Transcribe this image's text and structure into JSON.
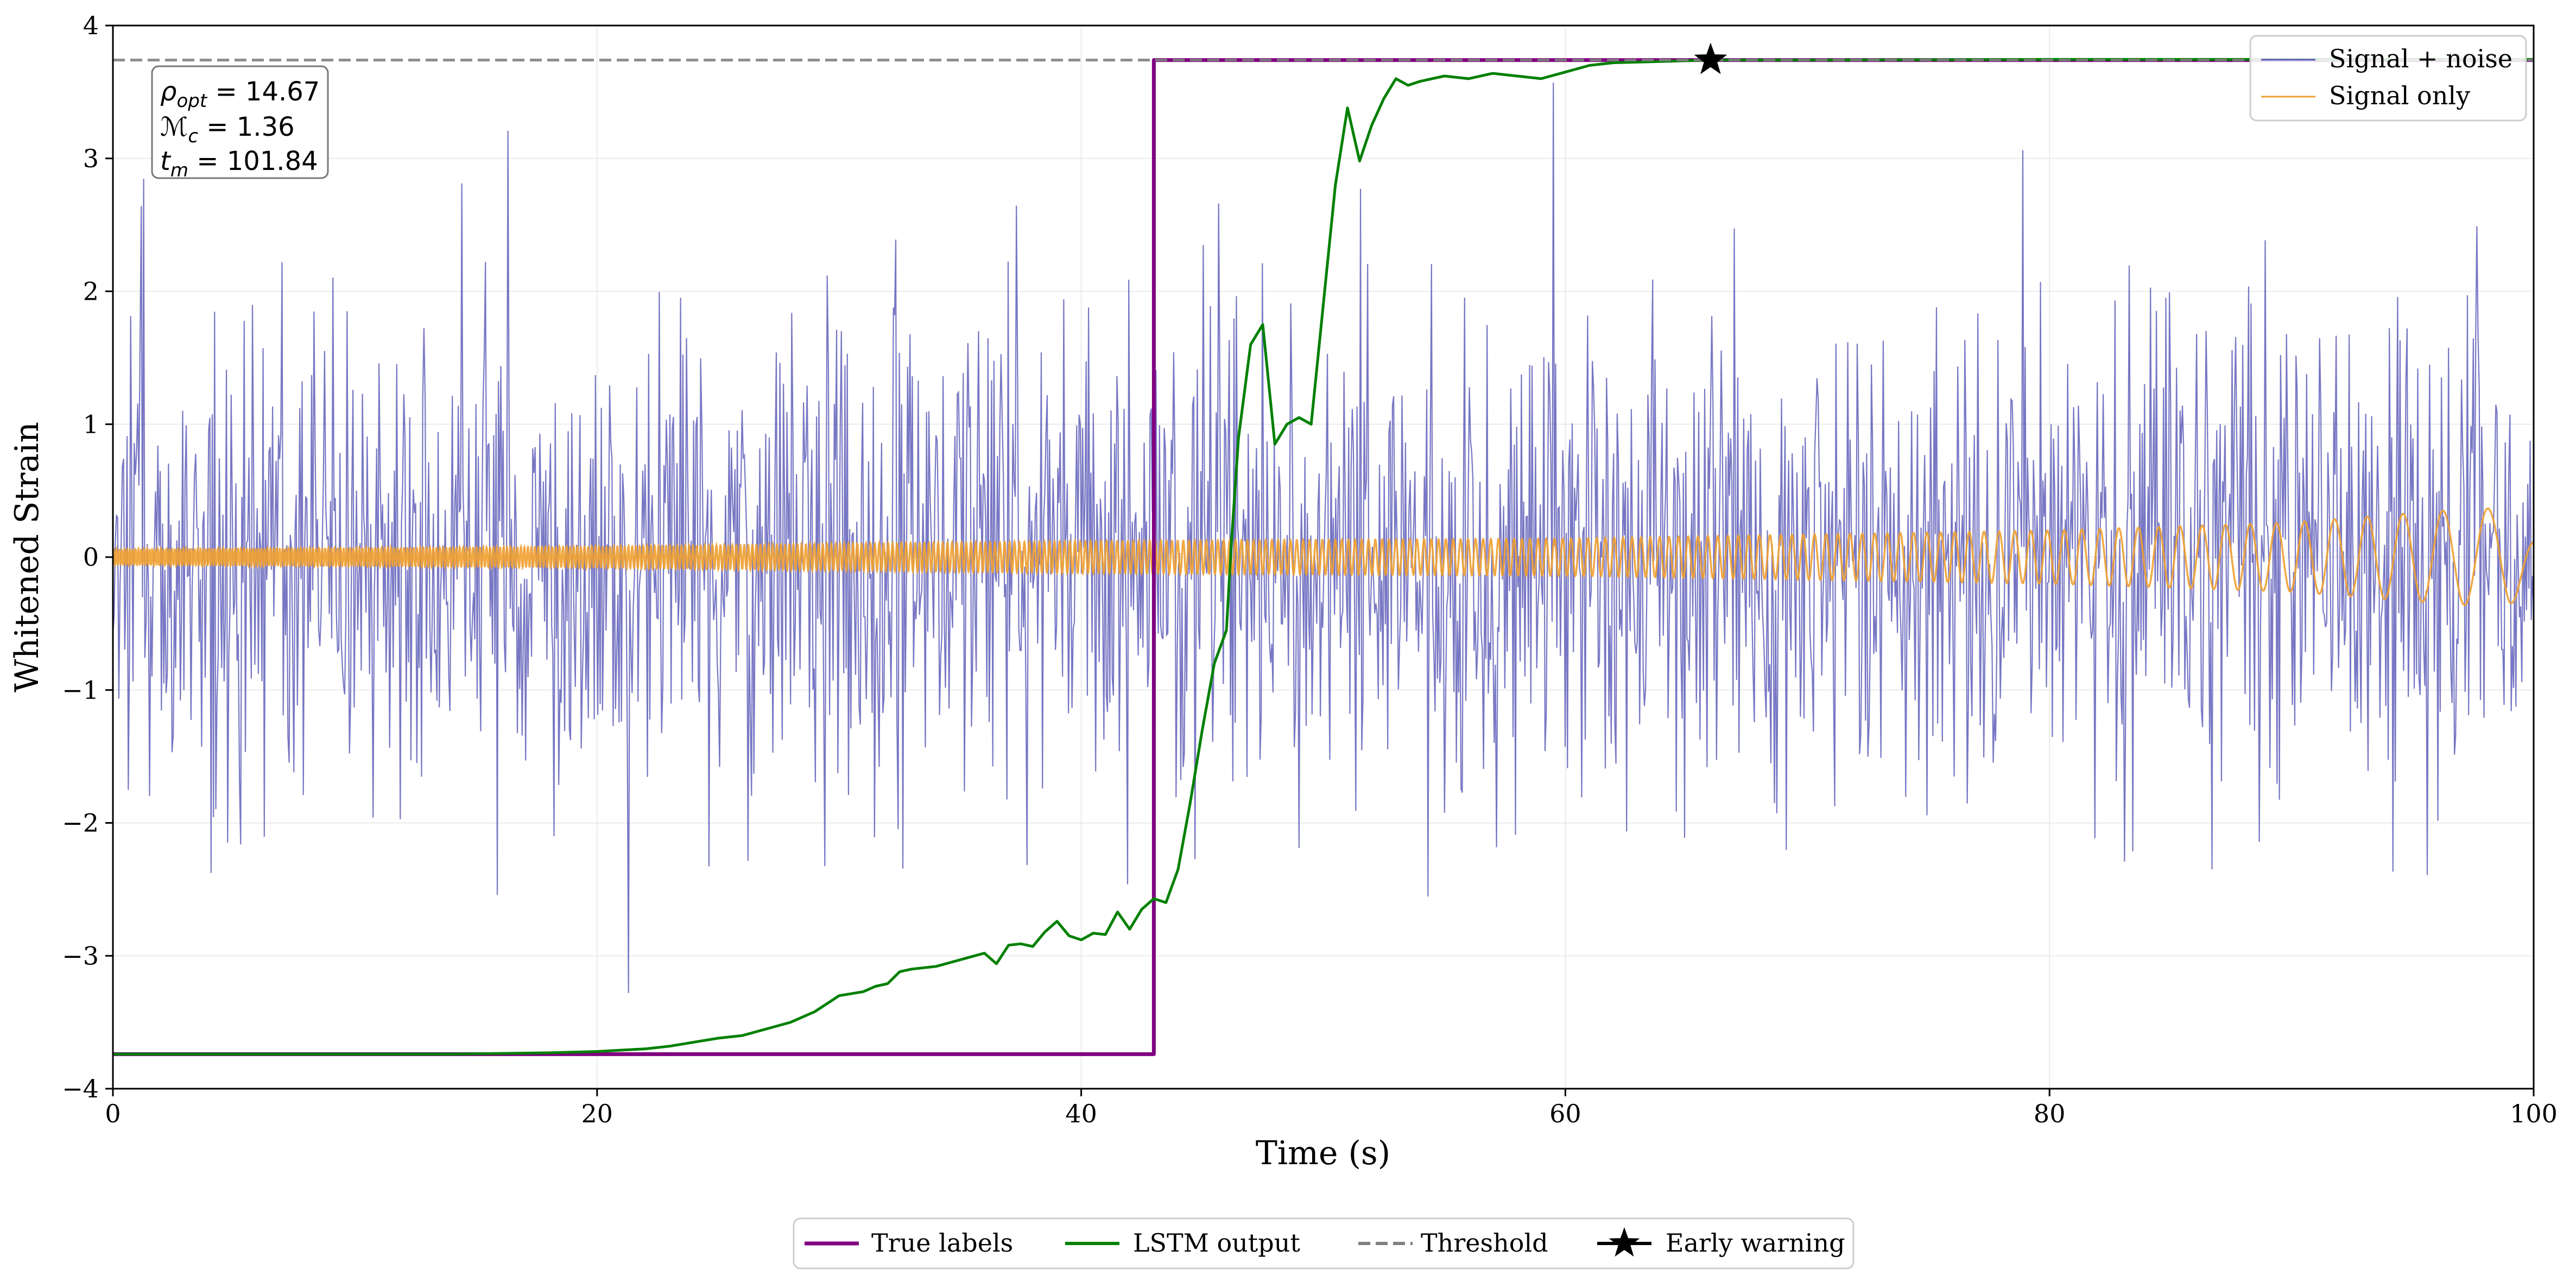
{
  "chart_data": {
    "type": "line",
    "title": "",
    "xlabel": "Time (s)",
    "ylabel": "Whitened Strain",
    "xlim": [
      0,
      100
    ],
    "ylim": [
      -4,
      4
    ],
    "x_ticks": [
      0,
      20,
      40,
      60,
      80,
      100
    ],
    "x_tick_labels": [
      "0",
      "20",
      "40",
      "60",
      "80",
      "100"
    ],
    "y_ticks": [
      -4,
      -3,
      -2,
      -1,
      0,
      1,
      2,
      3,
      4
    ],
    "y_tick_labels": [
      "−4",
      "−3",
      "−2",
      "−1",
      "0",
      "1",
      "2",
      "3",
      "4"
    ],
    "grid": true,
    "legend_upper": {
      "placement": "top-right",
      "entries": [
        {
          "label": "Signal + noise",
          "color": "#5555b5",
          "style": "line"
        },
        {
          "label": "Signal only",
          "color": "#f0a030",
          "style": "line"
        }
      ]
    },
    "legend_lower": {
      "placement": "bottom-center",
      "entries": [
        {
          "label": "True labels",
          "color": "#800080",
          "style": "line"
        },
        {
          "label": "LSTM output",
          "color": "#008000",
          "style": "line"
        },
        {
          "label": "Threshold",
          "color": "#808080",
          "style": "dashed"
        },
        {
          "label": "Early warning",
          "color": "#000000",
          "style": "star"
        }
      ]
    },
    "annotation": {
      "placement": "top-left",
      "lines": [
        {
          "sym": "ρ",
          "sub": "opt",
          "rest": " = 14.67"
        },
        {
          "sym": "ℳ",
          "sub": "c",
          "rest": " = 1.36"
        },
        {
          "sym": "t",
          "sub": "m",
          "rest": " = 101.84"
        }
      ]
    },
    "series": [
      {
        "name": "Signal + noise",
        "color": "#5555b5",
        "kind": "noise",
        "x_range": [
          0,
          100
        ],
        "n_samples": 2048,
        "std": 0.95,
        "min": -3.28,
        "max": 3.57,
        "note": "dense whitened noise sampled across the full time range"
      },
      {
        "name": "Signal only",
        "color": "#f0a030",
        "kind": "chirp",
        "x_range": [
          0,
          100
        ],
        "amplitude_envelope": [
          [
            0,
            0.06
          ],
          [
            20,
            0.08
          ],
          [
            40,
            0.12
          ],
          [
            60,
            0.14
          ],
          [
            80,
            0.2
          ],
          [
            90,
            0.26
          ],
          [
            97,
            0.36
          ],
          [
            99,
            0.37
          ],
          [
            100,
            0.15
          ]
        ],
        "note": "inspiral chirp whose frequency drops toward the end of the window"
      },
      {
        "name": "True labels",
        "color": "#800080",
        "points": [
          [
            0,
            -3.74
          ],
          [
            43,
            -3.74
          ],
          [
            43,
            3.74
          ],
          [
            100,
            3.74
          ]
        ]
      },
      {
        "name": "LSTM output",
        "color": "#008000",
        "points": [
          [
            0,
            -3.74
          ],
          [
            14,
            -3.74
          ],
          [
            16,
            -3.735
          ],
          [
            18,
            -3.73
          ],
          [
            20,
            -3.72
          ],
          [
            21,
            -3.71
          ],
          [
            22,
            -3.7
          ],
          [
            23,
            -3.68
          ],
          [
            24,
            -3.65
          ],
          [
            25,
            -3.62
          ],
          [
            26,
            -3.6
          ],
          [
            27,
            -3.55
          ],
          [
            28,
            -3.5
          ],
          [
            29,
            -3.42
          ],
          [
            30,
            -3.3
          ],
          [
            31,
            -3.27
          ],
          [
            31.5,
            -3.23
          ],
          [
            32,
            -3.21
          ],
          [
            32.5,
            -3.12
          ],
          [
            33,
            -3.1
          ],
          [
            34,
            -3.08
          ],
          [
            35,
            -3.03
          ],
          [
            36,
            -2.98
          ],
          [
            36.5,
            -3.06
          ],
          [
            37,
            -2.92
          ],
          [
            37.5,
            -2.91
          ],
          [
            38,
            -2.93
          ],
          [
            38.5,
            -2.82
          ],
          [
            39,
            -2.74
          ],
          [
            39.5,
            -2.85
          ],
          [
            40,
            -2.88
          ],
          [
            40.5,
            -2.83
          ],
          [
            41,
            -2.84
          ],
          [
            41.5,
            -2.67
          ],
          [
            42,
            -2.8
          ],
          [
            42.5,
            -2.65
          ],
          [
            43,
            -2.57
          ],
          [
            43.5,
            -2.6
          ],
          [
            44,
            -2.35
          ],
          [
            44.5,
            -1.85
          ],
          [
            45,
            -1.3
          ],
          [
            45.5,
            -0.8
          ],
          [
            46,
            -0.55
          ],
          [
            46.2,
            0.1
          ],
          [
            46.5,
            0.9
          ],
          [
            47,
            1.6
          ],
          [
            47.5,
            1.75
          ],
          [
            48,
            0.85
          ],
          [
            48.5,
            1.0
          ],
          [
            49,
            1.05
          ],
          [
            49.5,
            1.0
          ],
          [
            50,
            1.9
          ],
          [
            50.5,
            2.8
          ],
          [
            51,
            3.38
          ],
          [
            51.5,
            2.98
          ],
          [
            52,
            3.25
          ],
          [
            52.5,
            3.45
          ],
          [
            53,
            3.6
          ],
          [
            53.5,
            3.55
          ],
          [
            54,
            3.58
          ],
          [
            55,
            3.62
          ],
          [
            56,
            3.6
          ],
          [
            57,
            3.64
          ],
          [
            58,
            3.62
          ],
          [
            59,
            3.6
          ],
          [
            60,
            3.65
          ],
          [
            61,
            3.7
          ],
          [
            62,
            3.72
          ],
          [
            64,
            3.73
          ],
          [
            66,
            3.74
          ],
          [
            70,
            3.74
          ],
          [
            80,
            3.745
          ],
          [
            100,
            3.745
          ]
        ]
      },
      {
        "name": "Threshold",
        "color": "#808080",
        "style": "dashed",
        "points": [
          [
            0,
            3.74
          ],
          [
            100,
            3.74
          ]
        ]
      },
      {
        "name": "Early warning",
        "color": "#000000",
        "marker": "star",
        "points": [
          [
            66,
            3.74
          ]
        ]
      }
    ]
  }
}
